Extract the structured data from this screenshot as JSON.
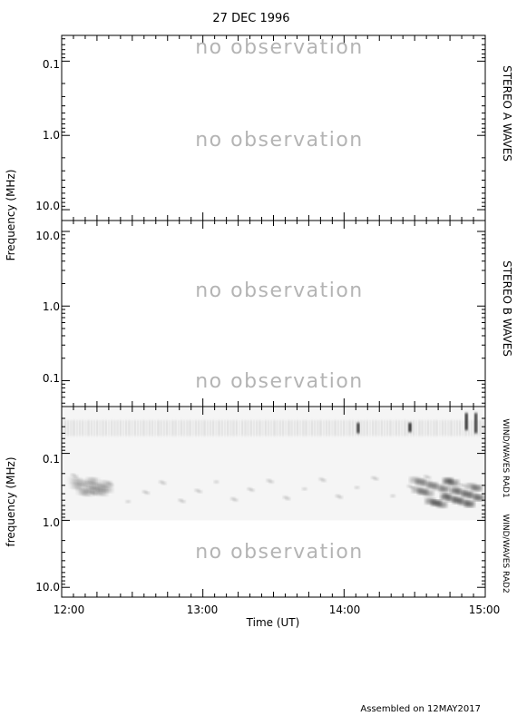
{
  "title": "27 DEC 1996",
  "footer": "Assembled on 12MAY2017",
  "no_obs_text": "no observation",
  "colors": {
    "no_obs": "#b4b4b4",
    "axis": "#000000",
    "spectrogram_ink": "#000000",
    "background": "#ffffff"
  },
  "chart_data": [
    {
      "type": "heatmap",
      "panel": "STEREO A WAVES",
      "side_label": "STEREO A WAVES",
      "ylabel": "",
      "y_scale": "log",
      "y_inverted": false,
      "ylim": [
        0.045,
        14
      ],
      "y_ticks": [
        "0.1",
        "1.0",
        "10.0"
      ],
      "xlim": [
        "12:00",
        "15:00"
      ],
      "annotations": [
        "no observation",
        "no observation"
      ],
      "status": "no observation"
    },
    {
      "type": "heatmap",
      "panel": "STEREO B WAVES",
      "side_label": "STEREO B WAVES",
      "ylabel": "",
      "y_scale": "log",
      "y_inverted": true,
      "ylim": [
        0.045,
        14
      ],
      "y_ticks": [
        "10.0",
        "1.0",
        "0.1"
      ],
      "xlim": [
        "12:00",
        "15:00"
      ],
      "annotations": [
        "no observation",
        "no observation"
      ],
      "status": "no observation"
    },
    {
      "type": "heatmap",
      "panel": "WIND/WAVES",
      "side_labels": [
        "WIND/WAVES RAD1",
        "WIND/WAVES RAD2"
      ],
      "ylabel": "frequency (MHz)",
      "y_scale": "log",
      "ylim": [
        0.02,
        14
      ],
      "y_ticks": [
        "0.1",
        "1.0",
        "10.0"
      ],
      "xlabel": "Time (UT)",
      "x_ticks": [
        "12:00",
        "13:00",
        "14:00",
        "15:00"
      ],
      "xlim": [
        "12:00",
        "15:00"
      ],
      "annotations": [
        "no observation"
      ],
      "rad2_status": "no observation",
      "features": [
        {
          "name": "background emission band",
          "freq_MHz": [
            0.032,
            0.055
          ],
          "time": [
            "12:00",
            "15:00"
          ],
          "intensity": 0.18
        },
        {
          "name": "burst",
          "time": "14:06",
          "freq_MHz": [
            0.035,
            0.05
          ],
          "intensity": 0.85
        },
        {
          "name": "burst",
          "time": "14:28",
          "freq_MHz": [
            0.035,
            0.048
          ],
          "intensity": 0.95
        },
        {
          "name": "burst",
          "time": "14:52",
          "freq_MHz": [
            0.025,
            0.045
          ],
          "intensity": 0.9
        },
        {
          "name": "burst",
          "time": "14:56",
          "freq_MHz": [
            0.025,
            0.05
          ],
          "intensity": 0.85
        },
        {
          "name": "emission patch",
          "time": [
            "14:30",
            "14:58"
          ],
          "freq_MHz": [
            0.25,
            0.6
          ],
          "intensity": 0.8
        },
        {
          "name": "emission patch",
          "time": [
            "12:05",
            "12:20"
          ],
          "freq_MHz": [
            0.25,
            0.4
          ],
          "intensity": 0.25
        }
      ]
    }
  ]
}
